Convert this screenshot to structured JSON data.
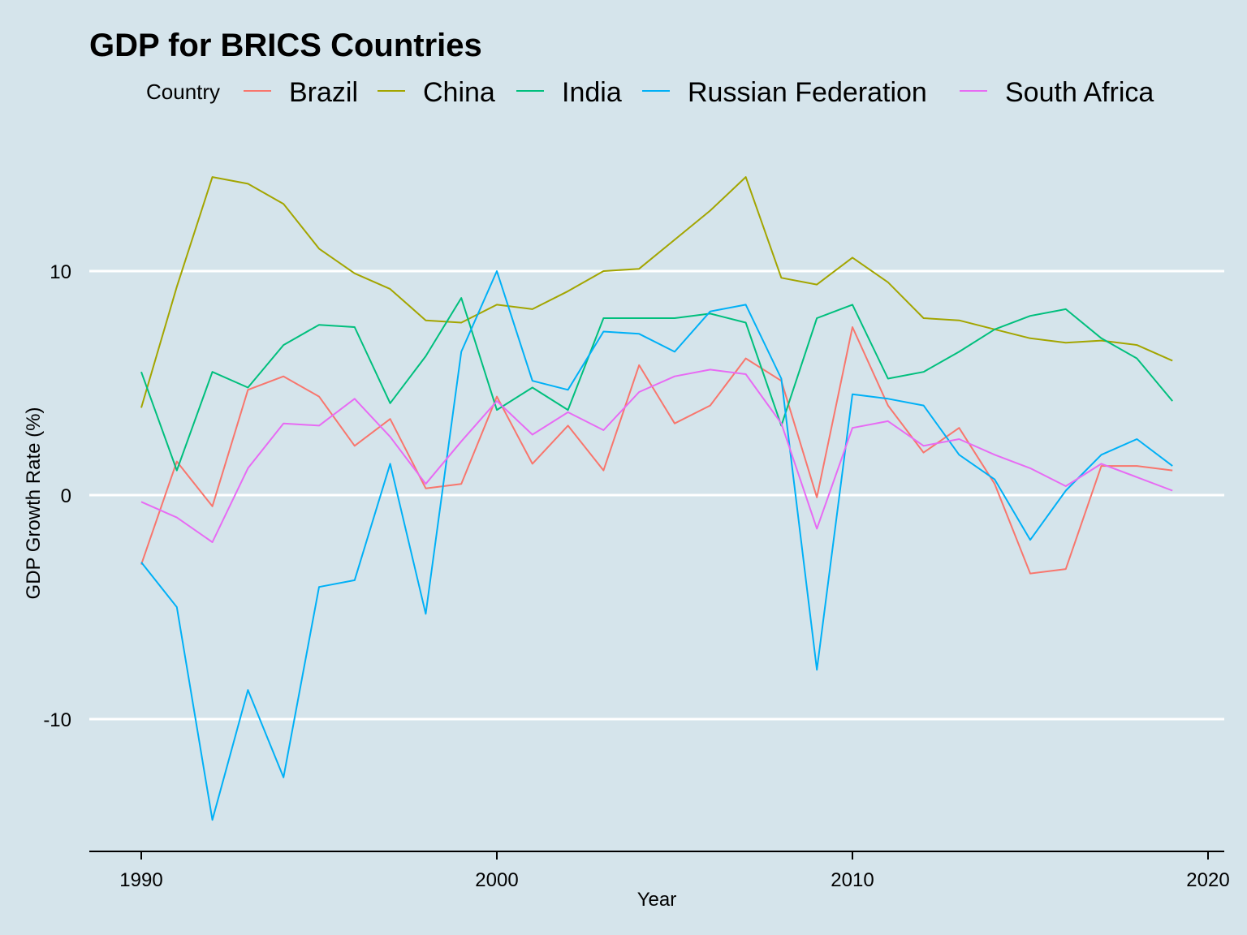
{
  "chart_data": {
    "type": "line",
    "title": "GDP for BRICS Countries",
    "xlabel": "Year",
    "ylabel": "GDP Growth Rate (%)",
    "xlim": [
      1988.5,
      2020.5
    ],
    "ylim": [
      -15.2,
      14.5
    ],
    "xticks": [
      1990,
      2000,
      2010,
      2020
    ],
    "yticks": [
      -10,
      0,
      10
    ],
    "grid": "horizontal major",
    "legend": {
      "title": "Country",
      "position": "top"
    },
    "x": [
      1990,
      1991,
      1992,
      1993,
      1994,
      1995,
      1996,
      1997,
      1998,
      1999,
      2000,
      2001,
      2002,
      2003,
      2004,
      2005,
      2006,
      2007,
      2008,
      2009,
      2010,
      2011,
      2012,
      2013,
      2014,
      2015,
      2016,
      2017,
      2018,
      2019
    ],
    "series": [
      {
        "name": "Brazil",
        "color": "#f8766d",
        "values": [
          -3.1,
          1.5,
          -0.5,
          4.7,
          5.3,
          4.4,
          2.2,
          3.4,
          0.3,
          0.5,
          4.4,
          1.4,
          3.1,
          1.1,
          5.8,
          3.2,
          4.0,
          6.1,
          5.1,
          -0.1,
          7.5,
          4.0,
          1.9,
          3.0,
          0.5,
          -3.5,
          -3.3,
          1.3,
          1.3,
          1.1
        ]
      },
      {
        "name": "China",
        "color": "#a3a500",
        "values": [
          3.9,
          9.3,
          14.2,
          13.9,
          13.0,
          11.0,
          9.9,
          9.2,
          7.8,
          7.7,
          8.5,
          8.3,
          9.1,
          10.0,
          10.1,
          11.4,
          12.7,
          14.2,
          9.7,
          9.4,
          10.6,
          9.5,
          7.9,
          7.8,
          7.4,
          7.0,
          6.8,
          6.9,
          6.7,
          6.0
        ]
      },
      {
        "name": "India",
        "color": "#00bf7d",
        "values": [
          5.5,
          1.1,
          5.5,
          4.8,
          6.7,
          7.6,
          7.5,
          4.1,
          6.2,
          8.8,
          3.8,
          4.8,
          3.8,
          7.9,
          7.9,
          7.9,
          8.1,
          7.7,
          3.1,
          7.9,
          8.5,
          5.2,
          5.5,
          6.4,
          7.4,
          8.0,
          8.3,
          7.0,
          6.1,
          4.2
        ]
      },
      {
        "name": "Russian Federation",
        "color": "#00b0f6",
        "values": [
          -3.0,
          -5.0,
          -14.5,
          -8.7,
          -12.6,
          -4.1,
          -3.8,
          1.4,
          -5.3,
          6.4,
          10.0,
          5.1,
          4.7,
          7.3,
          7.2,
          6.4,
          8.2,
          8.5,
          5.2,
          -7.8,
          4.5,
          4.3,
          4.0,
          1.8,
          0.7,
          -2.0,
          0.2,
          1.8,
          2.5,
          1.3
        ]
      },
      {
        "name": "South Africa",
        "color": "#e76bf3",
        "values": [
          -0.3,
          -1.0,
          -2.1,
          1.2,
          3.2,
          3.1,
          4.3,
          2.6,
          0.5,
          2.4,
          4.2,
          2.7,
          3.7,
          2.9,
          4.6,
          5.3,
          5.6,
          5.4,
          3.2,
          -1.5,
          3.0,
          3.3,
          2.2,
          2.5,
          1.8,
          1.2,
          0.4,
          1.4,
          0.8,
          0.2
        ]
      }
    ]
  }
}
